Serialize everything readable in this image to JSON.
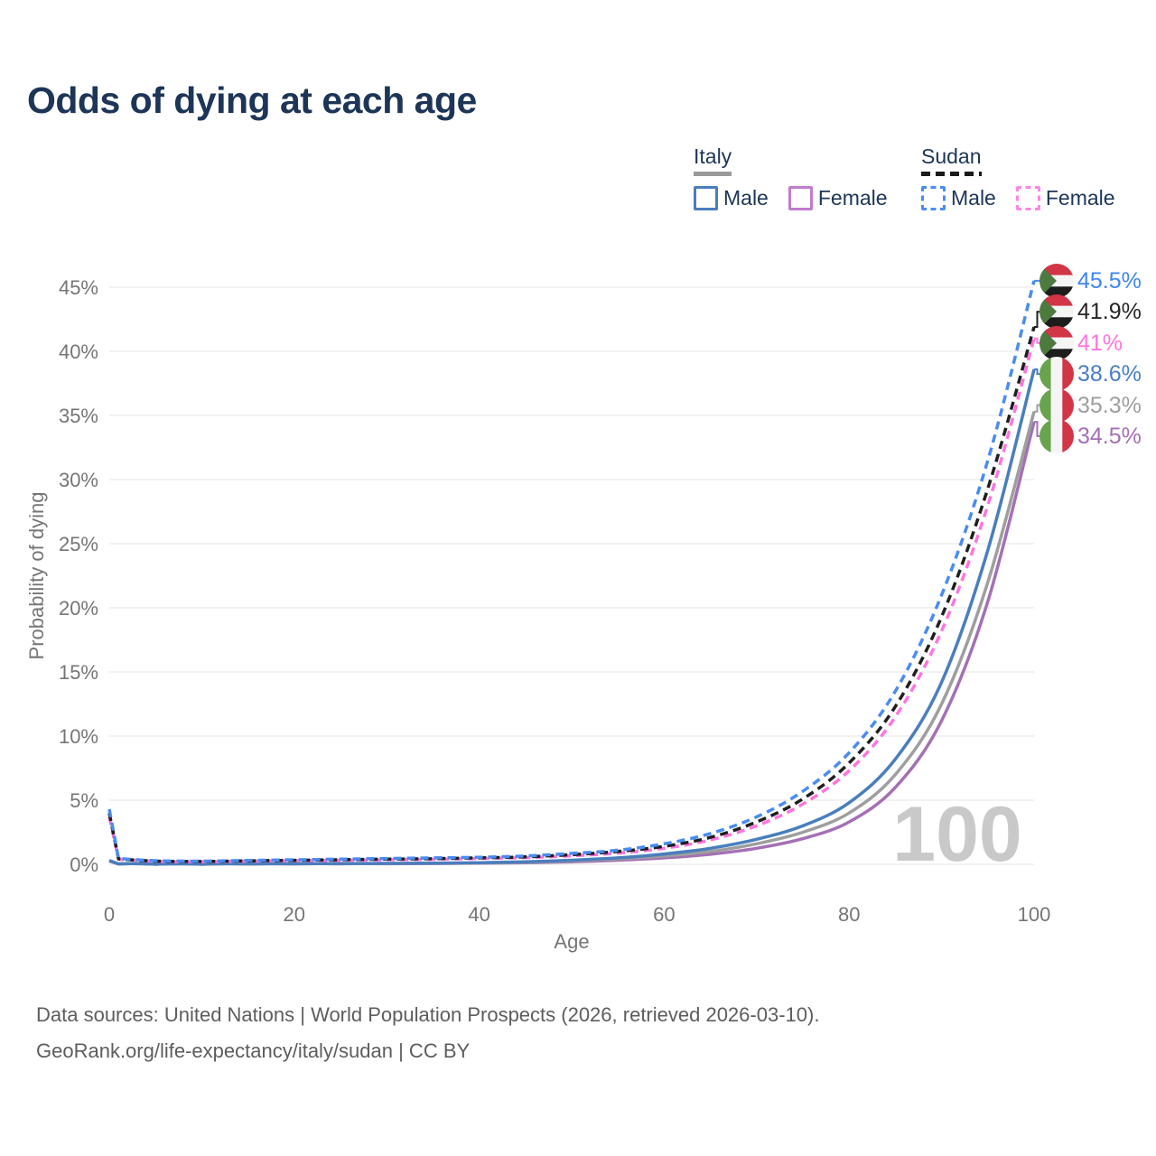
{
  "title": "Odds of dying at each age",
  "legend": {
    "groups": [
      {
        "name": "Italy",
        "style": "solid",
        "underline_color": "#9a9a9a",
        "items": [
          {
            "label": "Male",
            "color": "#4a7ebd",
            "dashed": false
          },
          {
            "label": "Female",
            "color": "#bf7bcd",
            "dashed": false
          }
        ]
      },
      {
        "name": "Sudan",
        "style": "dashed",
        "underline_color": "#1a1a1a",
        "items": [
          {
            "label": "Male",
            "color": "#4a8cf0",
            "dashed": true
          },
          {
            "label": "Female",
            "color": "#ff85e8",
            "dashed": true
          }
        ]
      }
    ]
  },
  "chart_data": {
    "type": "line",
    "title": "Odds of dying at each age",
    "xlabel": "Age",
    "ylabel": "Probability of dying",
    "xlim": [
      0,
      100
    ],
    "ylim": [
      0,
      46.5
    ],
    "grid": true,
    "legend_position": "top-right",
    "x_ticks": [
      0,
      20,
      40,
      60,
      80,
      100
    ],
    "x_tick_labels": [
      "0",
      "20",
      "40",
      "60",
      "80",
      "100"
    ],
    "y_ticks": [
      0,
      5,
      10,
      15,
      20,
      25,
      30,
      35,
      40,
      45
    ],
    "y_tick_labels": [
      "0%",
      "5%",
      "10%",
      "15%",
      "20%",
      "25%",
      "30%",
      "35%",
      "40%",
      "45%"
    ],
    "age_watermark": "100",
    "x": [
      0,
      1,
      5,
      10,
      15,
      20,
      25,
      30,
      35,
      40,
      45,
      50,
      55,
      60,
      65,
      70,
      75,
      80,
      85,
      90,
      95,
      100
    ],
    "series": [
      {
        "name": "Sudan Male",
        "country": "Sudan",
        "sex": "Male",
        "color": "#4a8cf0",
        "label_color": "#3e86f0",
        "dashed": true,
        "flag": "sudan",
        "end_label": "45.5%",
        "values": [
          4.3,
          0.45,
          0.28,
          0.25,
          0.3,
          0.35,
          0.4,
          0.45,
          0.5,
          0.55,
          0.65,
          0.85,
          1.1,
          1.6,
          2.4,
          3.7,
          5.7,
          8.7,
          13.5,
          21.0,
          31.5,
          45.5
        ]
      },
      {
        "name": "Sudan Both sexes",
        "country": "Sudan",
        "sex": "Both",
        "color": "#1f1f1f",
        "label_color": "#262626",
        "dashed": true,
        "flag": "sudan",
        "end_label": "41.9%",
        "values": [
          4.0,
          0.42,
          0.25,
          0.22,
          0.27,
          0.31,
          0.36,
          0.4,
          0.44,
          0.5,
          0.58,
          0.75,
          1.0,
          1.4,
          2.1,
          3.3,
          5.1,
          7.9,
          12.3,
          19.3,
          29.3,
          41.9
        ]
      },
      {
        "name": "Sudan Female",
        "country": "Sudan",
        "sex": "Female",
        "color": "#ff74de",
        "label_color": "#ff74de",
        "dashed": true,
        "flag": "sudan",
        "end_label": "41%",
        "values": [
          3.7,
          0.4,
          0.23,
          0.2,
          0.24,
          0.28,
          0.31,
          0.35,
          0.39,
          0.45,
          0.52,
          0.66,
          0.87,
          1.25,
          1.9,
          3.0,
          4.7,
          7.3,
          11.5,
          18.2,
          28.0,
          41.0
        ]
      },
      {
        "name": "Italy Male",
        "country": "Italy",
        "sex": "Male",
        "color": "#4a7ebd",
        "label_color": "#4a7ec8",
        "dashed": false,
        "flag": "italy",
        "end_label": "38.6%",
        "values": [
          0.3,
          0.03,
          0.01,
          0.01,
          0.04,
          0.05,
          0.06,
          0.07,
          0.09,
          0.13,
          0.2,
          0.32,
          0.5,
          0.8,
          1.25,
          1.95,
          3.0,
          4.8,
          8.2,
          14.2,
          24.5,
          38.6
        ]
      },
      {
        "name": "Italy Both sexes",
        "country": "Italy",
        "sex": "Both",
        "color": "#9e9e9e",
        "label_color": "#9e9e9e",
        "dashed": false,
        "flag": "italy",
        "end_label": "35.3%",
        "values": [
          0.28,
          0.025,
          0.01,
          0.01,
          0.03,
          0.04,
          0.05,
          0.06,
          0.08,
          0.11,
          0.17,
          0.27,
          0.42,
          0.65,
          1.0,
          1.6,
          2.5,
          4.0,
          7.0,
          12.5,
          22.0,
          35.3
        ]
      },
      {
        "name": "Italy Female",
        "country": "Italy",
        "sex": "Female",
        "color": "#a470b4",
        "label_color": "#a36fb5",
        "dashed": false,
        "flag": "italy",
        "end_label": "34.5%",
        "values": [
          0.25,
          0.02,
          0.008,
          0.008,
          0.02,
          0.03,
          0.035,
          0.045,
          0.06,
          0.09,
          0.13,
          0.2,
          0.32,
          0.5,
          0.78,
          1.25,
          2.0,
          3.3,
          6.0,
          11.2,
          20.5,
          34.5
        ]
      }
    ]
  },
  "footer": {
    "line1": "Data sources: United Nations | World Population Prospects (2026, retrieved 2026-03-10).",
    "line2": "GeoRank.org/life-expectancy/italy/sudan | CC BY"
  },
  "colors": {
    "title": "#1d3557",
    "axis_text": "#757575",
    "grid": "#e9e9e9",
    "watermark": "#c9c9c9",
    "legend_text": "#1d3557",
    "footer_text": "#5d5d5d"
  }
}
